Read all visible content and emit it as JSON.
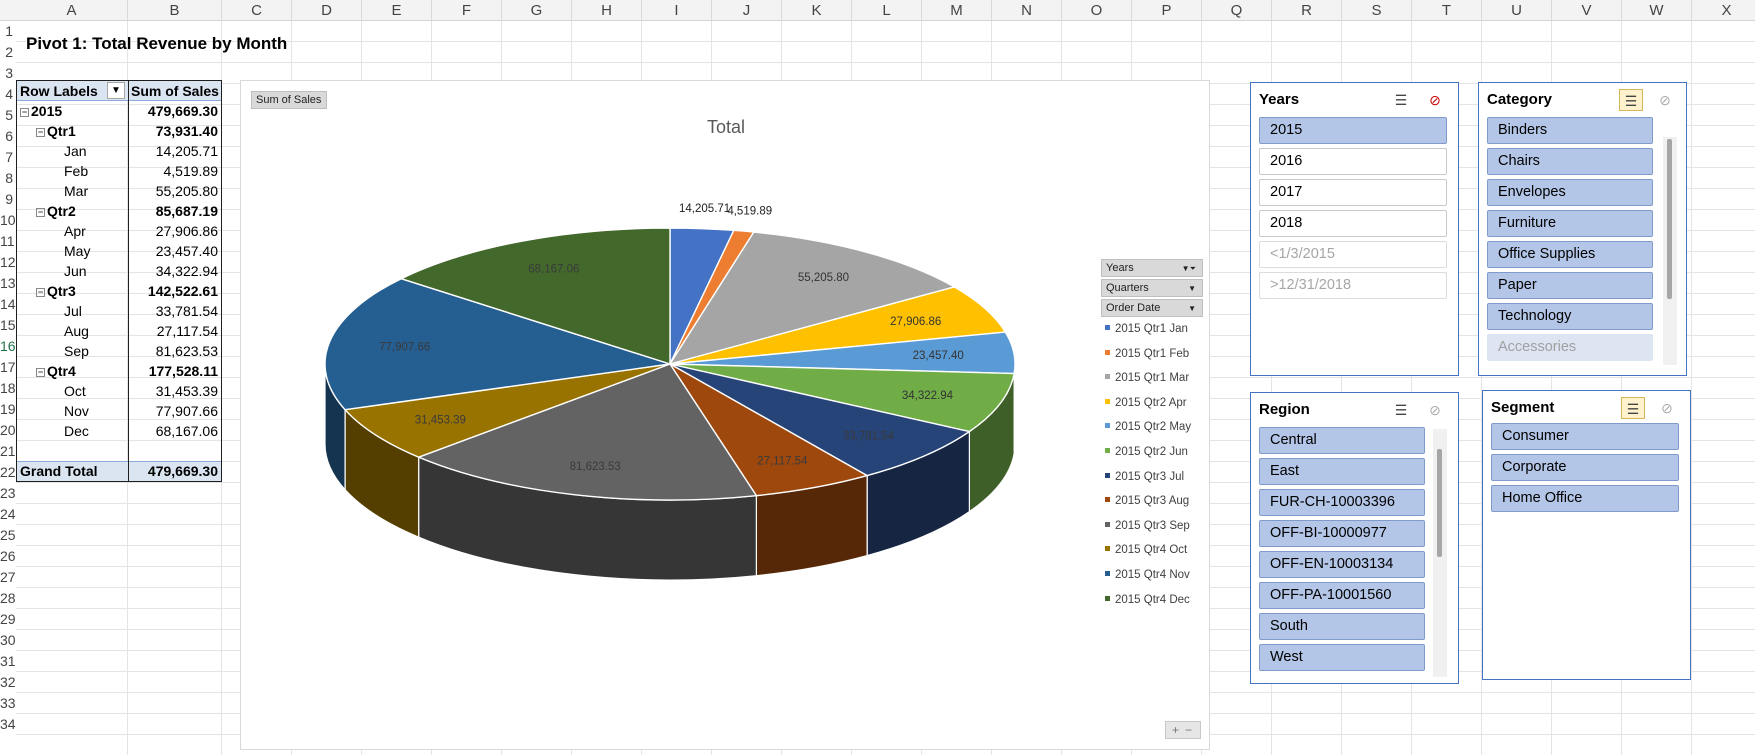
{
  "columns": [
    "A",
    "B",
    "C",
    "D",
    "E",
    "F",
    "G",
    "H",
    "I",
    "J",
    "K",
    "L",
    "M",
    "N",
    "O",
    "P",
    "Q",
    "R",
    "S",
    "T",
    "U",
    "V",
    "W",
    "X"
  ],
  "rows": [
    "1",
    "2",
    "3",
    "4",
    "5",
    "6",
    "7",
    "8",
    "9",
    "10",
    "11",
    "12",
    "13",
    "14",
    "15",
    "16",
    "17",
    "18",
    "19",
    "20",
    "21",
    "22",
    "23",
    "24",
    "25",
    "26",
    "27",
    "28",
    "29",
    "30",
    "31",
    "32",
    "33",
    "34"
  ],
  "title": "Pivot 1: Total Revenue by Month",
  "pivot": {
    "header_label": "Row Labels",
    "header_value": "Sum of Sales",
    "rows": [
      {
        "label": "2015",
        "value": "479,669.30",
        "level": 0,
        "bold": true,
        "collapse": true
      },
      {
        "label": "Qtr1",
        "value": "73,931.40",
        "level": 1,
        "bold": true,
        "collapse": true
      },
      {
        "label": "Jan",
        "value": "14,205.71",
        "level": 2,
        "bold": false,
        "collapse": false
      },
      {
        "label": "Feb",
        "value": "4,519.89",
        "level": 2,
        "bold": false,
        "collapse": false
      },
      {
        "label": "Mar",
        "value": "55,205.80",
        "level": 2,
        "bold": false,
        "collapse": false
      },
      {
        "label": "Qtr2",
        "value": "85,687.19",
        "level": 1,
        "bold": true,
        "collapse": true
      },
      {
        "label": "Apr",
        "value": "27,906.86",
        "level": 2,
        "bold": false,
        "collapse": false
      },
      {
        "label": "May",
        "value": "23,457.40",
        "level": 2,
        "bold": false,
        "collapse": false
      },
      {
        "label": "Jun",
        "value": "34,322.94",
        "level": 2,
        "bold": false,
        "collapse": false
      },
      {
        "label": "Qtr3",
        "value": "142,522.61",
        "level": 1,
        "bold": true,
        "collapse": true
      },
      {
        "label": "Jul",
        "value": "33,781.54",
        "level": 2,
        "bold": false,
        "collapse": false
      },
      {
        "label": "Aug",
        "value": "27,117.54",
        "level": 2,
        "bold": false,
        "collapse": false
      },
      {
        "label": "Sep",
        "value": "81,623.53",
        "level": 2,
        "bold": false,
        "collapse": false
      },
      {
        "label": "Qtr4",
        "value": "177,528.11",
        "level": 1,
        "bold": true,
        "collapse": true
      },
      {
        "label": "Oct",
        "value": "31,453.39",
        "level": 2,
        "bold": false,
        "collapse": false
      },
      {
        "label": "Nov",
        "value": "77,907.66",
        "level": 2,
        "bold": false,
        "collapse": false
      },
      {
        "label": "Dec",
        "value": "68,167.06",
        "level": 2,
        "bold": false,
        "collapse": false
      }
    ],
    "grand_total_label": "Grand Total",
    "grand_total_value": "479,669.30"
  },
  "chart": {
    "value_button": "Sum of Sales",
    "field_buttons": [
      "Years",
      "Quarters",
      "Order Date"
    ]
  },
  "chart_data": {
    "type": "pie",
    "title": "Total",
    "categories": [
      "2015 Qtr1 Jan",
      "2015 Qtr1 Feb",
      "2015 Qtr1 Mar",
      "2015 Qtr2 Apr",
      "2015 Qtr2 May",
      "2015 Qtr2 Jun",
      "2015 Qtr3 Jul",
      "2015 Qtr3 Aug",
      "2015 Qtr3 Sep",
      "2015 Qtr4 Oct",
      "2015 Qtr4 Nov",
      "2015 Qtr4 Dec"
    ],
    "values": [
      14205.71,
      4519.89,
      55205.8,
      27906.86,
      23457.4,
      34322.94,
      33781.54,
      27117.54,
      81623.53,
      31453.39,
      77907.66,
      68167.06
    ],
    "data_labels": [
      "14,205.71",
      "4,519.89",
      "55,205.80",
      "27,906.86",
      "23,457.40",
      "34,322.94",
      "33,781.54",
      "27,117.54",
      "81,623.53",
      "31,453.39",
      "77,907.66",
      "68,167.06"
    ],
    "colors": [
      "#4472c4",
      "#ed7d31",
      "#a5a5a5",
      "#ffc000",
      "#5b9bd5",
      "#70ad47",
      "#264478",
      "#9e480e",
      "#636363",
      "#997300",
      "#255e91",
      "#43682b"
    ],
    "legend_position": "right",
    "style": "3d-pie"
  },
  "slicers": {
    "years": {
      "title": "Years",
      "items": [
        {
          "label": "2015",
          "state": "selected"
        },
        {
          "label": "2016",
          "state": "off"
        },
        {
          "label": "2017",
          "state": "off"
        },
        {
          "label": "2018",
          "state": "off"
        },
        {
          "label": "<1/3/2015",
          "state": "nodata"
        },
        {
          "label": ">12/31/2018",
          "state": "nodata"
        }
      ]
    },
    "category": {
      "title": "Category",
      "items": [
        {
          "label": "Binders",
          "state": "selected"
        },
        {
          "label": "Chairs",
          "state": "selected"
        },
        {
          "label": "Envelopes",
          "state": "selected"
        },
        {
          "label": "Furniture",
          "state": "selected"
        },
        {
          "label": "Office Supplies",
          "state": "selected"
        },
        {
          "label": "Paper",
          "state": "selected"
        },
        {
          "label": "Technology",
          "state": "selected"
        },
        {
          "label": "Accessories",
          "state": "faded"
        }
      ]
    },
    "region": {
      "title": "Region",
      "items": [
        {
          "label": "Central",
          "state": "selected"
        },
        {
          "label": "East",
          "state": "selected"
        },
        {
          "label": "FUR-CH-10003396",
          "state": "selected"
        },
        {
          "label": "OFF-BI-10000977",
          "state": "selected"
        },
        {
          "label": "OFF-EN-10003134",
          "state": "selected"
        },
        {
          "label": "OFF-PA-10001560",
          "state": "selected"
        },
        {
          "label": "South",
          "state": "selected"
        },
        {
          "label": "West",
          "state": "selected"
        }
      ]
    },
    "segment": {
      "title": "Segment",
      "items": [
        {
          "label": "Consumer",
          "state": "selected"
        },
        {
          "label": "Corporate",
          "state": "selected"
        },
        {
          "label": "Home Office",
          "state": "selected"
        }
      ]
    }
  },
  "icons": {
    "multiselect": "multi-select-icon",
    "clear_filter": "clear-filter-icon",
    "filter": "filter-dropdown-icon"
  }
}
